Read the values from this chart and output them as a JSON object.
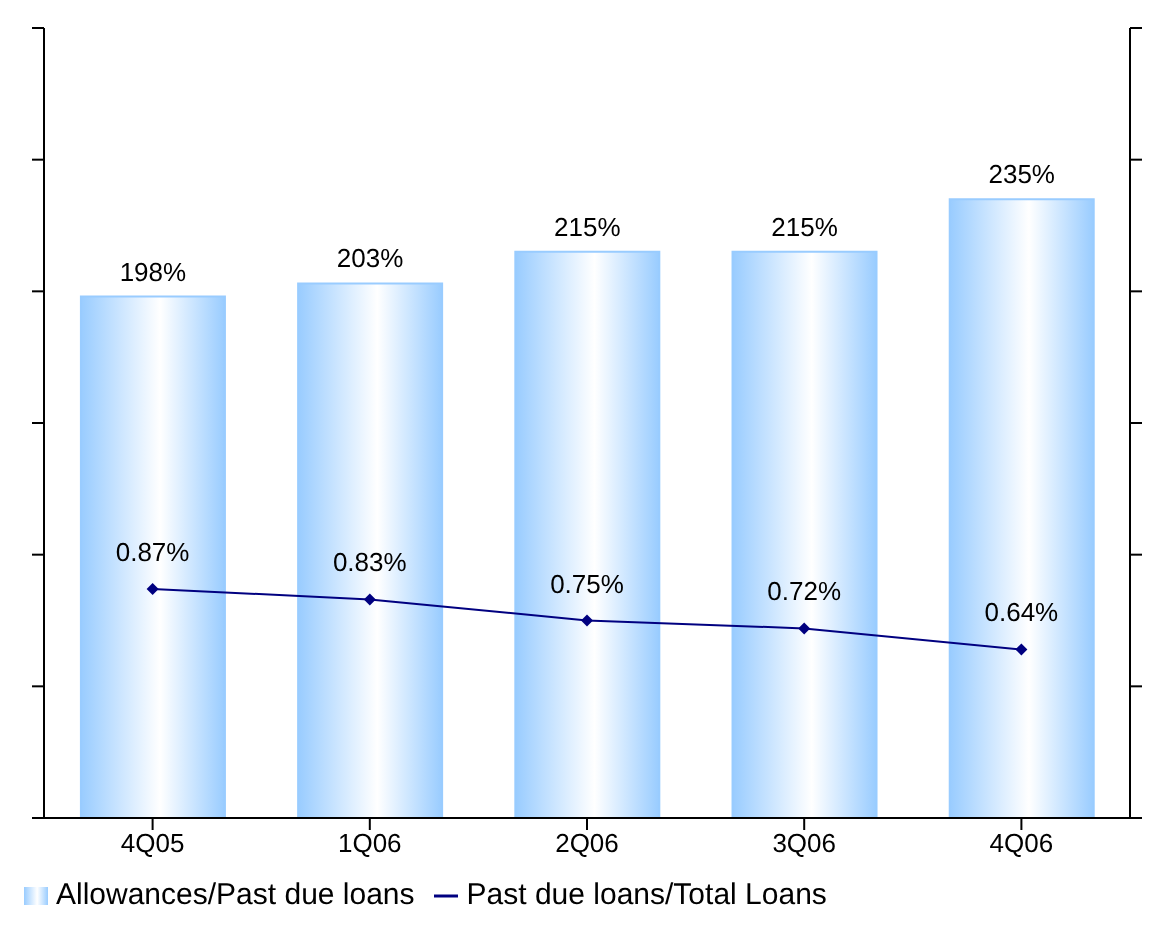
{
  "chart_data": {
    "type": "bar",
    "categories": [
      "4Q05",
      "1Q06",
      "2Q06",
      "3Q06",
      "4Q06"
    ],
    "series": [
      {
        "name": "Allowances/Past due loans",
        "color": "#99ccff",
        "values": [
          198,
          203,
          215,
          215,
          235
        ],
        "value_labels": [
          "198%",
          "203%",
          "215%",
          "215%",
          "235%"
        ]
      },
      {
        "name": "Past due loans/Total Loans",
        "type": "line",
        "axis": "y2",
        "color": "#000080",
        "marker": "diamond",
        "values": [
          0.87,
          0.83,
          0.75,
          0.72,
          0.64
        ],
        "value_labels": [
          "0.87%",
          "0.83%",
          "0.75%",
          "0.72%",
          "0.64%"
        ]
      }
    ],
    "ylim": [
      0,
      300
    ],
    "yticks": [
      {
        "value": 0,
        "label": null
      },
      {
        "value": 50,
        "label": null
      },
      {
        "value": 100,
        "label": null
      },
      {
        "value": 150,
        "label": null
      },
      {
        "value": 200,
        "label": null
      },
      {
        "value": 250,
        "label": null
      },
      {
        "value": 300,
        "label": null
      }
    ],
    "y2lim": [
      0,
      3
    ],
    "y2ticks": [
      {
        "value": 0,
        "label": null
      },
      {
        "value": 0.5,
        "label": null
      },
      {
        "value": 1,
        "label": null
      },
      {
        "value": 1.5,
        "label": null
      },
      {
        "value": 2,
        "label": null
      },
      {
        "value": 2.5,
        "label": null
      },
      {
        "value": 3,
        "label": null
      }
    ],
    "tick_labels": "x",
    "grid": false,
    "legend": "bottom"
  }
}
